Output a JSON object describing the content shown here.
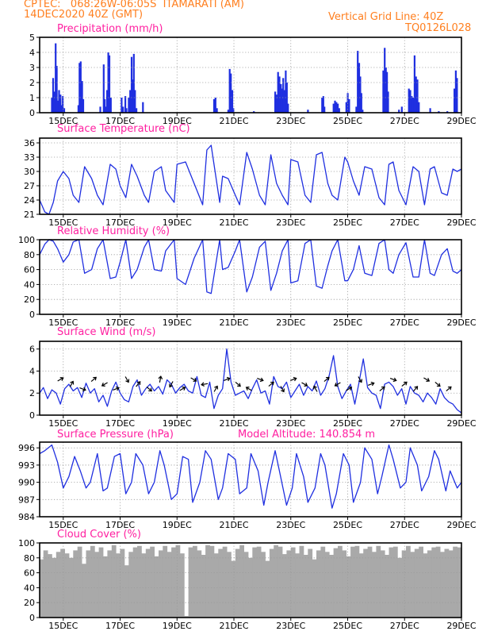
{
  "header": {
    "line1": "CPTEC:   068:26W-06:05S  ITAMARATI (AM)",
    "line2_left": "14DEC2020 40Z (GMT)",
    "line2_right": "Vertical Grid Line: 40Z",
    "line3_right": "TQ0126L028"
  },
  "colors": {
    "header": "#ff7f1f",
    "title": "#ff1fa0",
    "series": "#1f2fe0",
    "cloud": "#a9a9a9",
    "grid": "#9a9a9a"
  },
  "x_axis": {
    "labels": [
      "15DEC",
      "17DEC",
      "19DEC",
      "21DEC",
      "23DEC",
      "25DEC",
      "27DEC",
      "29DEC"
    ],
    "label_days": [
      15,
      17,
      19,
      21,
      23,
      25,
      27,
      29
    ],
    "range_days": [
      14.17,
      29.0
    ]
  },
  "chart_data": [
    {
      "id": "precip",
      "type": "bar",
      "title": "Precipitation (mm/h)",
      "ylim": [
        0,
        5
      ],
      "yticks": [
        0,
        1,
        2,
        3,
        4,
        5
      ],
      "x_unit": "day of Dec 2020",
      "bars": [
        [
          14.6,
          1.0
        ],
        [
          14.64,
          2.3
        ],
        [
          14.68,
          1.4
        ],
        [
          14.73,
          4.6
        ],
        [
          14.77,
          3.1
        ],
        [
          14.81,
          0.8
        ],
        [
          14.85,
          1.5
        ],
        [
          14.9,
          1.2
        ],
        [
          14.94,
          0.5
        ],
        [
          14.98,
          1.1
        ],
        [
          15.03,
          0.3
        ],
        [
          15.53,
          0.5
        ],
        [
          15.57,
          3.3
        ],
        [
          15.61,
          3.4
        ],
        [
          15.66,
          2.1
        ],
        [
          15.7,
          0.9
        ],
        [
          16.3,
          0.4
        ],
        [
          16.42,
          3.2
        ],
        [
          16.46,
          0.9
        ],
        [
          16.5,
          0.4
        ],
        [
          16.54,
          1.5
        ],
        [
          16.58,
          4.0
        ],
        [
          16.62,
          3.8
        ],
        [
          16.67,
          1.0
        ],
        [
          17.05,
          1.0
        ],
        [
          17.1,
          0.4
        ],
        [
          17.18,
          1.1
        ],
        [
          17.22,
          0.3
        ],
        [
          17.3,
          1.0
        ],
        [
          17.35,
          1.5
        ],
        [
          17.4,
          3.7
        ],
        [
          17.44,
          2.2
        ],
        [
          17.48,
          3.9
        ],
        [
          17.52,
          1.5
        ],
        [
          17.57,
          0.3
        ],
        [
          17.8,
          0.7
        ],
        [
          20.3,
          0.9
        ],
        [
          20.35,
          1.0
        ],
        [
          20.4,
          0.3
        ],
        [
          20.8,
          0.2
        ],
        [
          20.85,
          2.9
        ],
        [
          20.89,
          2.6
        ],
        [
          20.94,
          1.5
        ],
        [
          20.98,
          0.3
        ],
        [
          21.7,
          0.1
        ],
        [
          22.45,
          1.4
        ],
        [
          22.5,
          1.2
        ],
        [
          22.55,
          2.7
        ],
        [
          22.6,
          2.4
        ],
        [
          22.65,
          1.9
        ],
        [
          22.69,
          1.6
        ],
        [
          22.73,
          2.3
        ],
        [
          22.77,
          1.5
        ],
        [
          22.82,
          2.8
        ],
        [
          22.86,
          2.0
        ],
        [
          22.9,
          0.6
        ],
        [
          23.6,
          0.2
        ],
        [
          24.1,
          1.0
        ],
        [
          24.14,
          1.1
        ],
        [
          24.18,
          0.4
        ],
        [
          24.5,
          0.6
        ],
        [
          24.55,
          0.8
        ],
        [
          24.6,
          0.7
        ],
        [
          24.65,
          0.6
        ],
        [
          24.7,
          0.3
        ],
        [
          24.95,
          0.7
        ],
        [
          25.0,
          1.3
        ],
        [
          25.05,
          0.9
        ],
        [
          25.3,
          0.4
        ],
        [
          25.35,
          4.1
        ],
        [
          25.4,
          3.3
        ],
        [
          25.44,
          2.4
        ],
        [
          25.48,
          1.3
        ],
        [
          25.52,
          0.2
        ],
        [
          26.25,
          2.8
        ],
        [
          26.3,
          4.3
        ],
        [
          26.34,
          3.0
        ],
        [
          26.38,
          2.7
        ],
        [
          26.42,
          1.4
        ],
        [
          26.8,
          0.2
        ],
        [
          26.9,
          0.4
        ],
        [
          27.15,
          1.6
        ],
        [
          27.2,
          1.5
        ],
        [
          27.25,
          1.1
        ],
        [
          27.3,
          1.0
        ],
        [
          27.35,
          3.8
        ],
        [
          27.4,
          2.4
        ],
        [
          27.45,
          2.2
        ],
        [
          27.5,
          0.7
        ],
        [
          27.9,
          0.3
        ],
        [
          28.2,
          0.1
        ],
        [
          28.5,
          0.1
        ],
        [
          28.75,
          1.6
        ],
        [
          28.8,
          2.8
        ],
        [
          28.84,
          2.3
        ]
      ]
    },
    {
      "id": "temp",
      "type": "line",
      "title": "Surface Temperature (nC)",
      "ylim": [
        21,
        37
      ],
      "yticks": [
        21,
        24,
        27,
        30,
        33,
        36
      ],
      "x": [
        14.17,
        14.35,
        14.5,
        14.65,
        14.8,
        15.0,
        15.2,
        15.35,
        15.55,
        15.75,
        16.0,
        16.2,
        16.4,
        16.65,
        16.85,
        17.0,
        17.2,
        17.4,
        17.6,
        17.85,
        18.0,
        18.2,
        18.45,
        18.6,
        18.9,
        19.0,
        19.3,
        19.6,
        19.9,
        20.05,
        20.2,
        20.5,
        20.6,
        20.8,
        21.05,
        21.2,
        21.45,
        21.65,
        21.9,
        22.1,
        22.3,
        22.5,
        22.7,
        22.9,
        23.0,
        23.25,
        23.5,
        23.7,
        23.9,
        24.1,
        24.3,
        24.45,
        24.65,
        24.9,
        25.0,
        25.2,
        25.4,
        25.6,
        25.85,
        26.1,
        26.3,
        26.45,
        26.6,
        26.8,
        27.05,
        27.3,
        27.5,
        27.7,
        27.9,
        28.05,
        28.3,
        28.5,
        28.7,
        28.85,
        29.0
      ],
      "y": [
        24.0,
        21.5,
        21.0,
        23.5,
        28.0,
        30.0,
        28.5,
        25.0,
        23.5,
        31.0,
        28.5,
        25.0,
        23.0,
        31.5,
        30.5,
        27.0,
        24.5,
        31.5,
        29.0,
        25.0,
        23.5,
        30.0,
        31.0,
        26.0,
        23.5,
        31.5,
        32.0,
        27.5,
        23.0,
        34.5,
        35.5,
        23.5,
        29.0,
        28.5,
        25.0,
        23.0,
        34.0,
        30.5,
        25.0,
        23.0,
        33.5,
        27.5,
        25.0,
        23.0,
        32.5,
        32.0,
        25.0,
        23.5,
        33.5,
        34.0,
        27.5,
        25.0,
        24.0,
        33.0,
        32.0,
        28.0,
        25.0,
        31.0,
        30.5,
        24.5,
        23.0,
        31.5,
        32.0,
        26.0,
        23.0,
        31.0,
        30.0,
        23.0,
        30.5,
        31.0,
        25.5,
        25.0,
        30.5,
        30.0,
        30.5
      ]
    },
    {
      "id": "rh",
      "type": "line",
      "title": "Relative Humidity (%)",
      "ylim": [
        0,
        100
      ],
      "yticks": [
        0,
        20,
        40,
        60,
        80,
        100
      ],
      "x": [
        14.17,
        14.35,
        14.5,
        14.65,
        14.8,
        15.0,
        15.2,
        15.35,
        15.55,
        15.75,
        16.0,
        16.2,
        16.4,
        16.65,
        16.85,
        17.0,
        17.2,
        17.4,
        17.6,
        17.85,
        18.0,
        18.2,
        18.45,
        18.6,
        18.9,
        19.0,
        19.3,
        19.6,
        19.9,
        20.05,
        20.2,
        20.5,
        20.6,
        20.8,
        21.05,
        21.2,
        21.45,
        21.65,
        21.9,
        22.1,
        22.3,
        22.5,
        22.7,
        22.9,
        23.0,
        23.25,
        23.5,
        23.7,
        23.9,
        24.1,
        24.3,
        24.45,
        24.65,
        24.9,
        25.0,
        25.2,
        25.4,
        25.6,
        25.85,
        26.1,
        26.3,
        26.45,
        26.6,
        26.8,
        27.05,
        27.3,
        27.5,
        27.7,
        27.9,
        28.05,
        28.3,
        28.5,
        28.7,
        28.85,
        29.0
      ],
      "y": [
        80,
        94,
        100,
        98,
        88,
        70,
        80,
        97,
        100,
        55,
        60,
        88,
        100,
        48,
        50,
        70,
        100,
        48,
        60,
        90,
        100,
        60,
        58,
        85,
        100,
        48,
        40,
        75,
        100,
        30,
        28,
        100,
        60,
        63,
        85,
        100,
        30,
        50,
        90,
        98,
        32,
        55,
        85,
        100,
        42,
        45,
        95,
        100,
        38,
        35,
        65,
        85,
        100,
        45,
        45,
        60,
        92,
        55,
        52,
        95,
        100,
        60,
        55,
        80,
        96,
        50,
        50,
        100,
        55,
        52,
        80,
        88,
        58,
        55,
        60
      ]
    },
    {
      "id": "wind",
      "type": "line",
      "title": "Surface Wind (m/s)",
      "ylim": [
        0,
        6.7
      ],
      "yticks": [
        0,
        2,
        4,
        6
      ],
      "x": [
        14.17,
        14.3,
        14.45,
        14.6,
        14.75,
        14.9,
        15.05,
        15.2,
        15.35,
        15.5,
        15.65,
        15.8,
        15.95,
        16.1,
        16.25,
        16.4,
        16.55,
        16.7,
        16.85,
        17.0,
        17.15,
        17.3,
        17.45,
        17.6,
        17.75,
        17.9,
        18.05,
        18.2,
        18.35,
        18.5,
        18.65,
        18.8,
        18.95,
        19.1,
        19.25,
        19.4,
        19.55,
        19.7,
        19.85,
        20.0,
        20.15,
        20.3,
        20.45,
        20.6,
        20.75,
        20.9,
        21.05,
        21.2,
        21.35,
        21.5,
        21.65,
        21.8,
        21.95,
        22.1,
        22.25,
        22.4,
        22.55,
        22.7,
        22.85,
        23.0,
        23.15,
        23.3,
        23.45,
        23.6,
        23.75,
        23.9,
        24.05,
        24.2,
        24.35,
        24.5,
        24.65,
        24.8,
        24.95,
        25.1,
        25.25,
        25.4,
        25.55,
        25.7,
        25.85,
        26.0,
        26.15,
        26.3,
        26.45,
        26.6,
        26.75,
        26.9,
        27.05,
        27.2,
        27.35,
        27.5,
        27.65,
        27.8,
        27.95,
        28.1,
        28.25,
        28.4,
        28.55,
        28.7,
        28.85,
        29.0
      ],
      "y": [
        2.0,
        2.5,
        1.5,
        2.3,
        2.0,
        1.0,
        2.4,
        2.8,
        2.2,
        2.5,
        1.6,
        2.9,
        2.0,
        2.4,
        1.2,
        1.8,
        0.8,
        2.2,
        3.0,
        2.0,
        1.4,
        1.2,
        2.6,
        3.2,
        1.8,
        2.4,
        2.8,
        2.2,
        2.6,
        1.9,
        3.2,
        2.8,
        2.0,
        2.5,
        2.8,
        2.2,
        2.0,
        3.5,
        1.8,
        1.6,
        3.0,
        0.6,
        1.8,
        2.4,
        6.0,
        3.0,
        1.8,
        2.0,
        2.2,
        1.5,
        2.4,
        3.2,
        2.0,
        2.2,
        1.0,
        3.5,
        2.6,
        2.4,
        3.0,
        1.6,
        2.2,
        2.8,
        1.8,
        2.6,
        2.2,
        3.1,
        1.8,
        2.4,
        3.6,
        5.4,
        2.6,
        1.5,
        2.2,
        2.8,
        1.0,
        3.0,
        5.1,
        2.5,
        2.0,
        1.8,
        0.6,
        2.8,
        3.0,
        2.6,
        1.8,
        2.4,
        1.0,
        2.6,
        2.0,
        1.8,
        1.2,
        2.0,
        1.6,
        1.0,
        2.4,
        1.6,
        1.2,
        1.0,
        0.5,
        0.2
      ]
    },
    {
      "id": "pressure",
      "type": "line",
      "title": "Surface Pressure (hPa)",
      "annotation": "Model Altitude: 140.854 m",
      "ylim": [
        984,
        997
      ],
      "yticks": [
        984,
        987,
        990,
        993,
        996
      ],
      "x": [
        14.17,
        14.35,
        14.6,
        14.8,
        15.0,
        15.2,
        15.4,
        15.6,
        15.8,
        15.95,
        16.2,
        16.4,
        16.55,
        16.8,
        17.0,
        17.2,
        17.4,
        17.55,
        17.8,
        18.0,
        18.2,
        18.4,
        18.55,
        18.8,
        19.0,
        19.2,
        19.4,
        19.55,
        19.8,
        20.0,
        20.2,
        20.45,
        20.6,
        20.8,
        21.05,
        21.2,
        21.45,
        21.6,
        21.85,
        22.05,
        22.2,
        22.45,
        22.6,
        22.85,
        23.05,
        23.2,
        23.45,
        23.6,
        23.85,
        24.05,
        24.2,
        24.45,
        24.6,
        24.85,
        25.05,
        25.2,
        25.45,
        25.6,
        25.85,
        26.05,
        26.2,
        26.45,
        26.6,
        26.85,
        27.05,
        27.2,
        27.45,
        27.6,
        27.85,
        28.05,
        28.2,
        28.45,
        28.6,
        28.85,
        29.0
      ],
      "y": [
        995.0,
        995.5,
        996.5,
        993.5,
        989.0,
        991.0,
        994.5,
        992.0,
        989.0,
        990.0,
        995.0,
        988.5,
        989.0,
        994.5,
        995.0,
        988.0,
        990.0,
        995.0,
        993.0,
        988.0,
        990.0,
        995.5,
        993.0,
        987.0,
        988.0,
        994.5,
        994.0,
        986.5,
        990.0,
        995.5,
        994.0,
        987.0,
        989.0,
        995.0,
        994.0,
        988.0,
        989.0,
        995.0,
        992.0,
        986.0,
        990.0,
        995.5,
        992.0,
        986.0,
        989.0,
        995.0,
        991.0,
        986.5,
        989.0,
        995.0,
        993.0,
        985.5,
        988.0,
        995.0,
        993.0,
        986.5,
        990.0,
        996.0,
        994.0,
        988.0,
        991.0,
        996.5,
        994.0,
        989.0,
        990.0,
        996.0,
        993.0,
        988.5,
        991.0,
        995.5,
        994.0,
        988.5,
        992.0,
        989.0,
        990.0
      ]
    },
    {
      "id": "cloud",
      "type": "area",
      "title": "Cloud Cover (%)",
      "ylim": [
        0,
        100
      ],
      "yticks": [
        0,
        20,
        40,
        60,
        80,
        100
      ],
      "x": [
        14.17,
        14.3,
        14.45,
        14.6,
        14.75,
        14.9,
        15.05,
        15.2,
        15.35,
        15.5,
        15.65,
        15.8,
        15.95,
        16.1,
        16.25,
        16.4,
        16.55,
        16.7,
        16.85,
        17.0,
        17.15,
        17.3,
        17.45,
        17.6,
        17.75,
        17.9,
        18.05,
        18.2,
        18.35,
        18.5,
        18.65,
        18.8,
        18.95,
        19.1,
        19.25,
        19.4,
        19.55,
        19.7,
        19.85,
        20.0,
        20.15,
        20.3,
        20.45,
        20.6,
        20.75,
        20.9,
        21.05,
        21.2,
        21.35,
        21.5,
        21.65,
        21.8,
        21.95,
        22.1,
        22.25,
        22.4,
        22.55,
        22.7,
        22.85,
        23.0,
        23.15,
        23.3,
        23.45,
        23.6,
        23.75,
        23.9,
        24.05,
        24.2,
        24.35,
        24.5,
        24.65,
        24.8,
        24.95,
        25.1,
        25.25,
        25.4,
        25.55,
        25.7,
        25.85,
        26.0,
        26.15,
        26.3,
        26.45,
        26.6,
        26.75,
        26.9,
        27.05,
        27.2,
        27.35,
        27.5,
        27.65,
        27.8,
        27.95,
        28.1,
        28.25,
        28.4,
        28.55,
        28.7,
        28.85,
        29.0
      ],
      "y": [
        78,
        90,
        85,
        80,
        88,
        92,
        86,
        80,
        90,
        95,
        72,
        90,
        96,
        88,
        94,
        82,
        90,
        97,
        86,
        92,
        70,
        88,
        94,
        96,
        86,
        92,
        95,
        82,
        90,
        96,
        88,
        94,
        97,
        86,
        2,
        94,
        96,
        90,
        84,
        97,
        96,
        86,
        92,
        95,
        88,
        76,
        92,
        97,
        88,
        80,
        94,
        95,
        88,
        76,
        92,
        97,
        95,
        85,
        90,
        94,
        86,
        96,
        84,
        92,
        78,
        90,
        95,
        88,
        84,
        93,
        96,
        90,
        82,
        95,
        96,
        86,
        92,
        95,
        88,
        96,
        90,
        84,
        94,
        95,
        80,
        90,
        96,
        88,
        92,
        95,
        86,
        90,
        94,
        95,
        88,
        92,
        90,
        95,
        94,
        95
      ]
    }
  ]
}
